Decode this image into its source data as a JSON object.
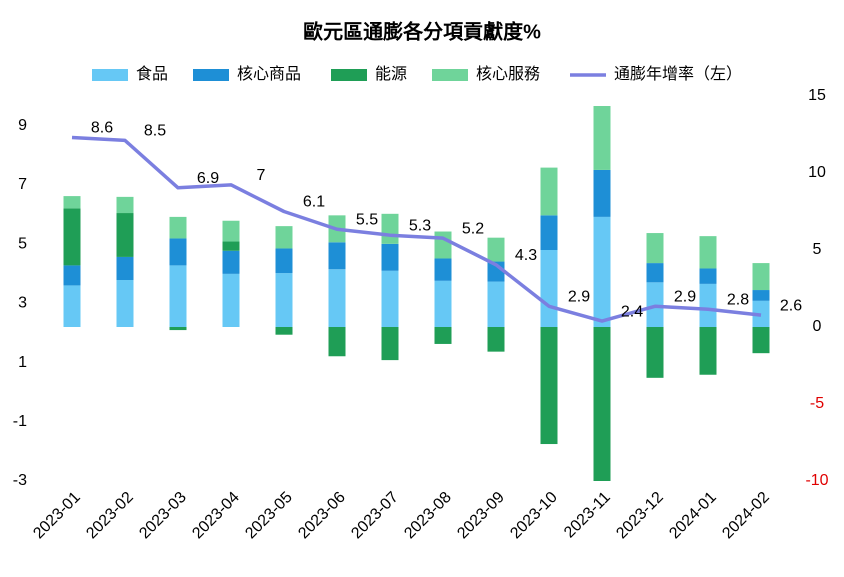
{
  "chart_data": {
    "type": "bar-line",
    "title": "歐元區通膨各分項貢獻度%",
    "categories": [
      "2023-01",
      "2023-02",
      "2023-03",
      "2023-04",
      "2023-05",
      "2023-06",
      "2023-07",
      "2023-08",
      "2023-09",
      "2023-10",
      "2023-11",
      "2023-12",
      "2024-01",
      "2024-02"
    ],
    "series": [
      {
        "name": "食品",
        "type": "bar",
        "axis": "y2",
        "color": "#66c8f5",
        "values": [
          2.7,
          3.05,
          4.0,
          3.45,
          3.5,
          3.75,
          3.65,
          3.0,
          2.95,
          5.0,
          7.15,
          2.9,
          2.8,
          1.7
        ]
      },
      {
        "name": "核心商品",
        "type": "bar",
        "axis": "y2",
        "color": "#1e8fd6",
        "values": [
          1.3,
          1.5,
          1.75,
          1.5,
          1.6,
          1.75,
          1.75,
          1.45,
          1.3,
          2.25,
          3.05,
          1.25,
          1.0,
          0.7
        ]
      },
      {
        "name": "能源",
        "type": "bar",
        "axis": "y2",
        "color": "#1f9e56",
        "values": [
          3.7,
          2.85,
          -0.2,
          0.6,
          -0.5,
          -1.9,
          -2.15,
          -1.1,
          -1.6,
          -7.6,
          -10,
          -3.3,
          -3.1,
          -1.7
        ]
      },
      {
        "name": "核心服務",
        "type": "bar",
        "axis": "y2",
        "color": "#6fd49a",
        "values": [
          0.8,
          1.05,
          1.4,
          1.35,
          1.45,
          1.75,
          1.95,
          1.75,
          1.55,
          3.1,
          4.15,
          1.95,
          2.1,
          1.75
        ]
      },
      {
        "name": "通膨年增率（左）",
        "type": "line",
        "axis": "y",
        "color": "#7b7fe0",
        "values": [
          8.6,
          8.5,
          6.9,
          7,
          6.1,
          5.5,
          5.3,
          5.2,
          4.3,
          2.9,
          2.4,
          2.9,
          2.8,
          2.6
        ]
      }
    ],
    "ylim": [
      -3,
      10
    ],
    "yticks": [
      9,
      7,
      5,
      3,
      1,
      -1,
      -3
    ],
    "y2lim": [
      -10,
      15
    ],
    "y2ticks": [
      15,
      10,
      5,
      0,
      -5,
      -10
    ],
    "y2tick_negative_color": "#e00000",
    "grid": false,
    "legend": "top"
  }
}
